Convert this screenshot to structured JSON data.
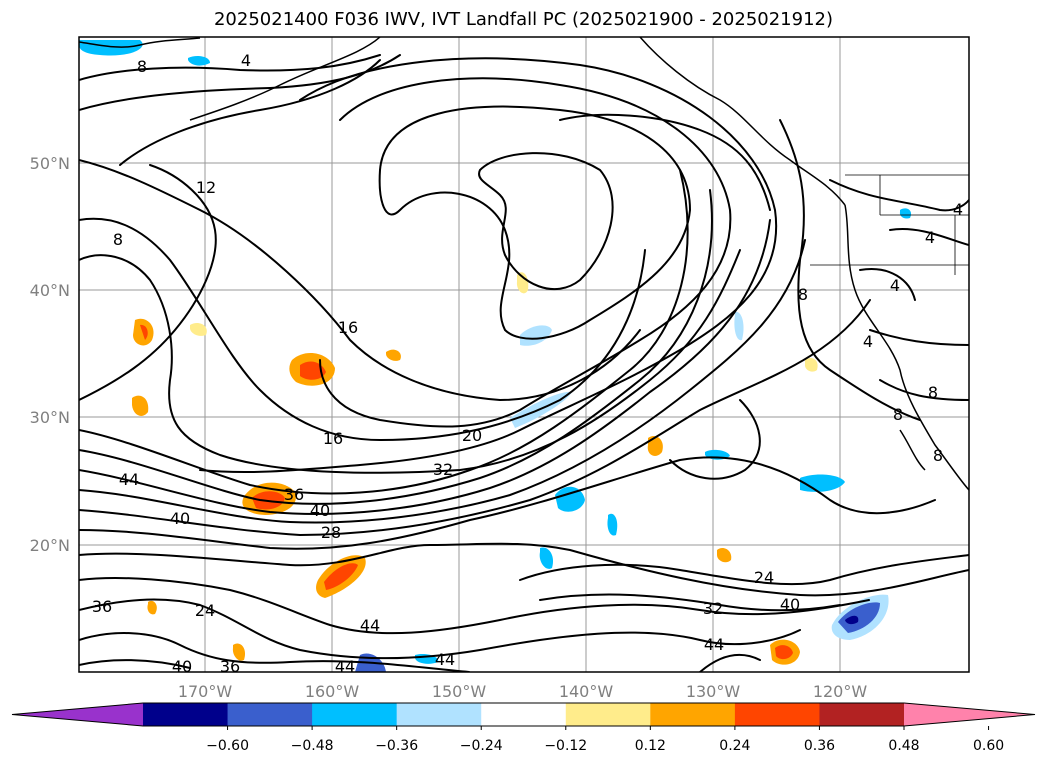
{
  "title": "2025021400 F036 IWV, IVT Landfall PC (2025021900 - 2025021912)",
  "map": {
    "lat_ticks": [
      "50°N",
      "40°N",
      "30°N",
      "20°N"
    ],
    "lon_ticks": [
      "170°W",
      "160°W",
      "150°W",
      "140°W",
      "130°W",
      "120°W"
    ]
  },
  "contour_labels": [
    "4",
    "8",
    "12",
    "8",
    "16",
    "16",
    "20",
    "32",
    "36",
    "40",
    "28",
    "44",
    "40",
    "36",
    "24",
    "40",
    "36",
    "44",
    "44",
    "24",
    "32",
    "40",
    "44",
    "8",
    "4",
    "4",
    "4",
    "8",
    "8",
    "8",
    "4"
  ],
  "colorbar": {
    "colors": [
      "#9932cc",
      "#00008b",
      "#3a5fcd",
      "#00bfff",
      "#b0e2ff",
      "#ffffff",
      "#ffec8b",
      "#ffa500",
      "#ff4500",
      "#b22222",
      "#ff82ab"
    ],
    "tick_labels": [
      "-0.60",
      "-0.48",
      "-0.36",
      "-0.24",
      "-0.12",
      "0.12",
      "0.24",
      "0.36",
      "0.48",
      "0.60"
    ]
  }
}
